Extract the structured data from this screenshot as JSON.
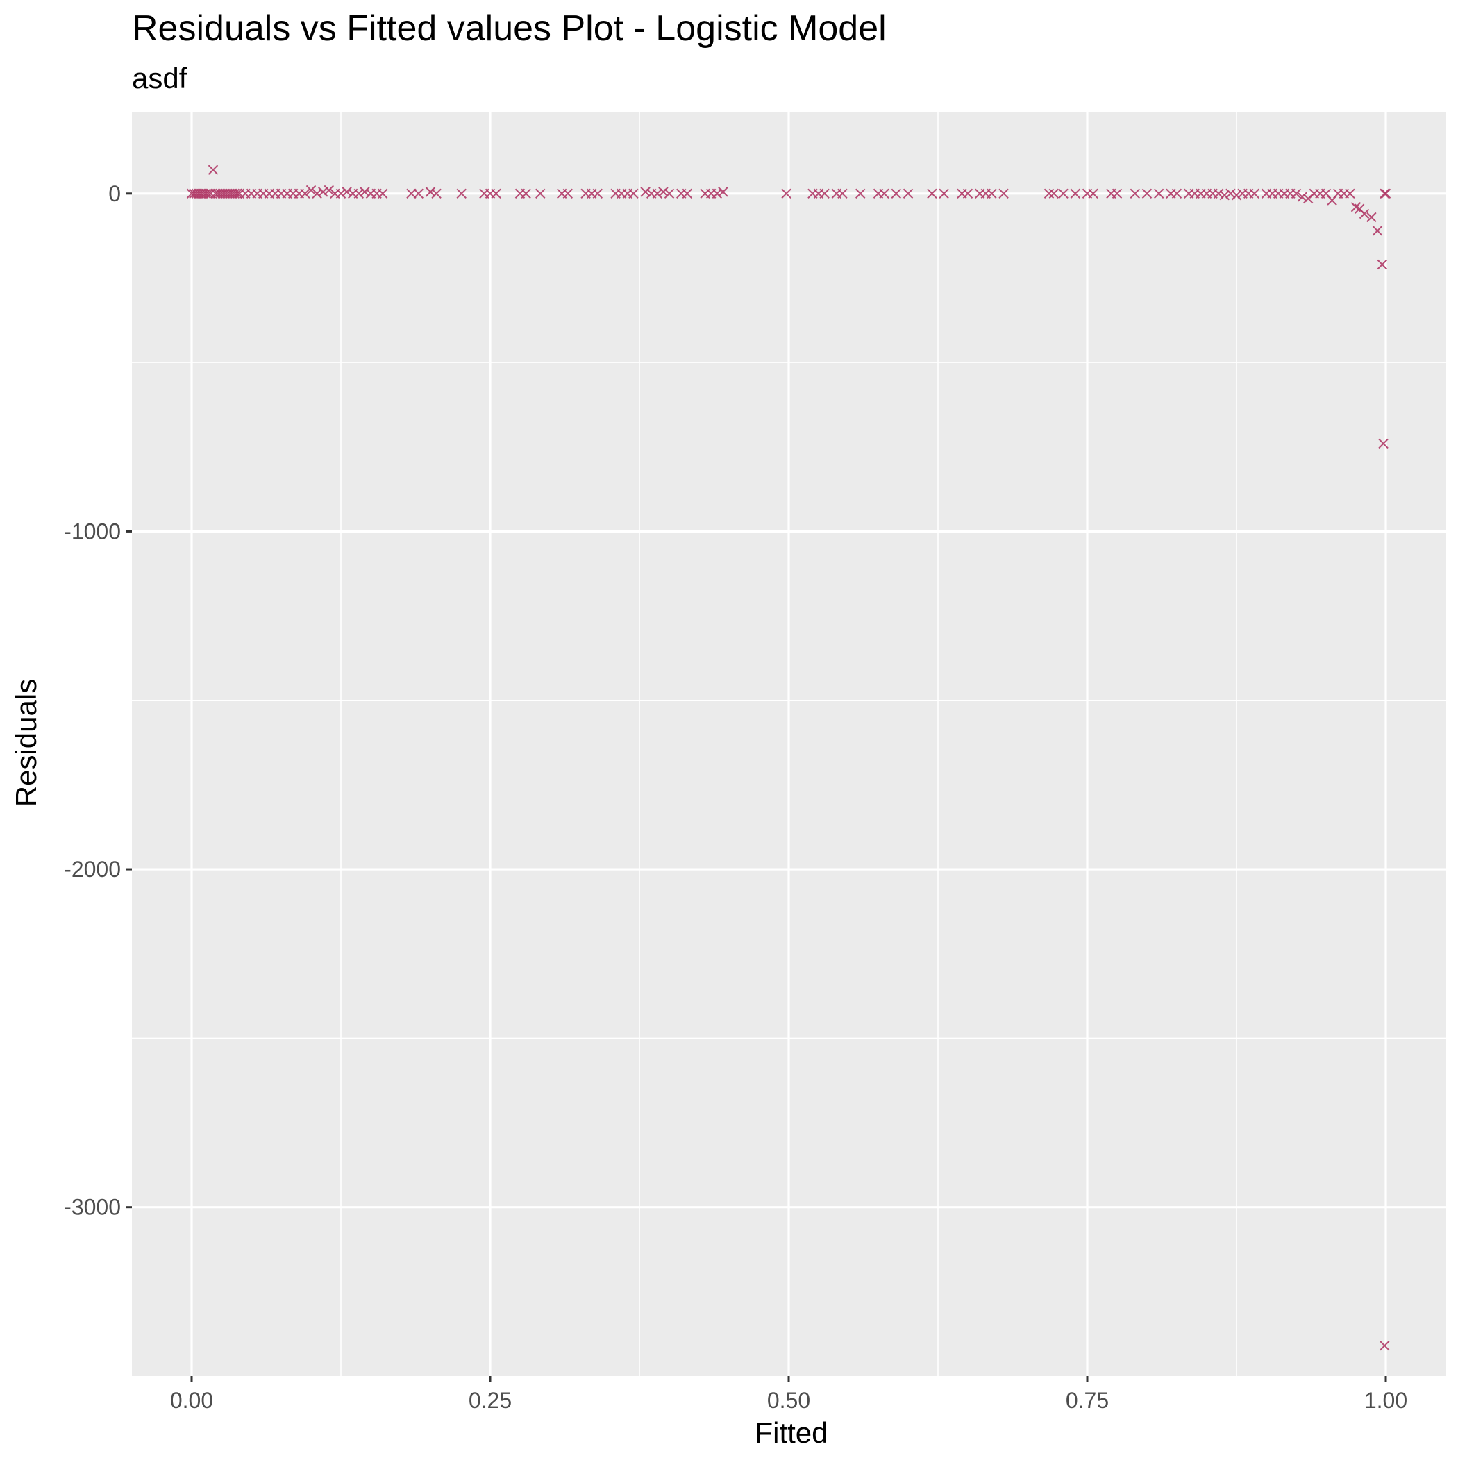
{
  "chart_data": {
    "type": "scatter",
    "title": "Residuals vs Fitted values Plot - Logistic Model",
    "subtitle": "asdf",
    "xlabel": "Fitted",
    "ylabel": "Residuals",
    "xlim": [
      -0.05,
      1.05
    ],
    "ylim": [
      -3500,
      240
    ],
    "x_ticks": [
      0,
      0.25,
      0.5,
      0.75,
      1
    ],
    "x_tick_labels": [
      "0.00",
      "0.25",
      "0.50",
      "0.75",
      "1.00"
    ],
    "y_ticks": [
      0,
      -1000,
      -2000,
      -3000
    ],
    "y_tick_labels": [
      "0",
      "-1000",
      "-2000",
      "-3000"
    ],
    "grid": true,
    "marker": "x",
    "point_color": "#b03a67",
    "panel_color": "#ebebeb",
    "grid_color": "#ffffff",
    "series": [
      {
        "points": [
          [
            0.0,
            0
          ],
          [
            0.002,
            0
          ],
          [
            0.004,
            0
          ],
          [
            0.006,
            0
          ],
          [
            0.008,
            0
          ],
          [
            0.01,
            0
          ],
          [
            0.012,
            0
          ],
          [
            0.014,
            0
          ],
          [
            0.016,
            0
          ],
          [
            0.018,
            70
          ],
          [
            0.02,
            0
          ],
          [
            0.022,
            0
          ],
          [
            0.024,
            0
          ],
          [
            0.026,
            0
          ],
          [
            0.028,
            0
          ],
          [
            0.03,
            0
          ],
          [
            0.032,
            0
          ],
          [
            0.034,
            0
          ],
          [
            0.036,
            0
          ],
          [
            0.038,
            0
          ],
          [
            0.04,
            0
          ],
          [
            0.045,
            0
          ],
          [
            0.05,
            0
          ],
          [
            0.055,
            0
          ],
          [
            0.06,
            0
          ],
          [
            0.065,
            0
          ],
          [
            0.07,
            0
          ],
          [
            0.075,
            0
          ],
          [
            0.08,
            0
          ],
          [
            0.085,
            0
          ],
          [
            0.09,
            0
          ],
          [
            0.095,
            0
          ],
          [
            0.1,
            10
          ],
          [
            0.105,
            0
          ],
          [
            0.11,
            5
          ],
          [
            0.115,
            10
          ],
          [
            0.12,
            0
          ],
          [
            0.125,
            0
          ],
          [
            0.13,
            5
          ],
          [
            0.135,
            0
          ],
          [
            0.14,
            0
          ],
          [
            0.145,
            5
          ],
          [
            0.15,
            0
          ],
          [
            0.155,
            0
          ],
          [
            0.16,
            0
          ],
          [
            0.184,
            0
          ],
          [
            0.19,
            0
          ],
          [
            0.2,
            5
          ],
          [
            0.205,
            0
          ],
          [
            0.226,
            0
          ],
          [
            0.245,
            0
          ],
          [
            0.25,
            0
          ],
          [
            0.255,
            0
          ],
          [
            0.275,
            0
          ],
          [
            0.28,
            0
          ],
          [
            0.292,
            0
          ],
          [
            0.31,
            0
          ],
          [
            0.315,
            0
          ],
          [
            0.33,
            0
          ],
          [
            0.335,
            0
          ],
          [
            0.34,
            0
          ],
          [
            0.355,
            0
          ],
          [
            0.36,
            0
          ],
          [
            0.365,
            0
          ],
          [
            0.37,
            0
          ],
          [
            0.38,
            5
          ],
          [
            0.385,
            0
          ],
          [
            0.39,
            0
          ],
          [
            0.395,
            5
          ],
          [
            0.4,
            0
          ],
          [
            0.41,
            0
          ],
          [
            0.415,
            0
          ],
          [
            0.43,
            0
          ],
          [
            0.435,
            0
          ],
          [
            0.44,
            0
          ],
          [
            0.445,
            5
          ],
          [
            0.498,
            0
          ],
          [
            0.52,
            0
          ],
          [
            0.525,
            0
          ],
          [
            0.53,
            0
          ],
          [
            0.54,
            0
          ],
          [
            0.545,
            0
          ],
          [
            0.56,
            0
          ],
          [
            0.575,
            0
          ],
          [
            0.58,
            0
          ],
          [
            0.59,
            0
          ],
          [
            0.6,
            0
          ],
          [
            0.62,
            0
          ],
          [
            0.63,
            0
          ],
          [
            0.645,
            0
          ],
          [
            0.65,
            0
          ],
          [
            0.66,
            0
          ],
          [
            0.665,
            0
          ],
          [
            0.67,
            0
          ],
          [
            0.68,
            0
          ],
          [
            0.718,
            0
          ],
          [
            0.722,
            0
          ],
          [
            0.73,
            0
          ],
          [
            0.74,
            0
          ],
          [
            0.75,
            0
          ],
          [
            0.755,
            0
          ],
          [
            0.77,
            0
          ],
          [
            0.775,
            0
          ],
          [
            0.79,
            0
          ],
          [
            0.8,
            0
          ],
          [
            0.81,
            0
          ],
          [
            0.82,
            0
          ],
          [
            0.825,
            0
          ],
          [
            0.835,
            0
          ],
          [
            0.84,
            0
          ],
          [
            0.845,
            0
          ],
          [
            0.85,
            0
          ],
          [
            0.855,
            0
          ],
          [
            0.86,
            0
          ],
          [
            0.865,
            -5
          ],
          [
            0.87,
            0
          ],
          [
            0.875,
            -5
          ],
          [
            0.88,
            0
          ],
          [
            0.885,
            0
          ],
          [
            0.89,
            0
          ],
          [
            0.9,
            0
          ],
          [
            0.905,
            0
          ],
          [
            0.91,
            0
          ],
          [
            0.915,
            0
          ],
          [
            0.92,
            0
          ],
          [
            0.925,
            0
          ],
          [
            0.93,
            -10
          ],
          [
            0.935,
            -15
          ],
          [
            0.94,
            0
          ],
          [
            0.945,
            0
          ],
          [
            0.95,
            0
          ],
          [
            0.955,
            -20
          ],
          [
            0.96,
            0
          ],
          [
            0.965,
            0
          ],
          [
            0.97,
            0
          ],
          [
            0.975,
            -40
          ],
          [
            0.978,
            -45
          ],
          [
            0.982,
            -60
          ],
          [
            0.988,
            -70
          ],
          [
            0.993,
            -110
          ],
          [
            0.997,
            -210
          ],
          [
            0.999,
            0
          ],
          [
            1.0,
            0
          ],
          [
            0.998,
            -740
          ],
          [
            0.999,
            -3410
          ]
        ]
      }
    ]
  }
}
